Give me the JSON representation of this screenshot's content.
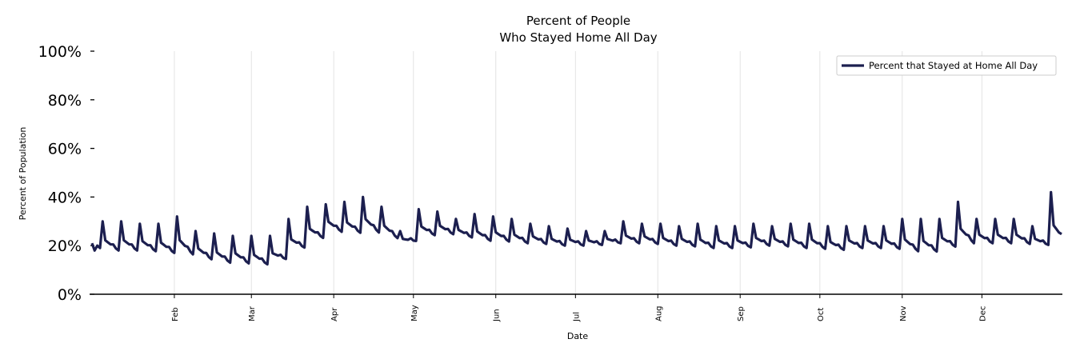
{
  "chart_data": {
    "type": "line",
    "title": [
      "Percent of People",
      "Who Stayed Home All Day"
    ],
    "xlabel": "Date",
    "ylabel": "Percent of Population",
    "ylim": [
      0,
      100
    ],
    "yticks": [
      "0%",
      "20%",
      "40%",
      "60%",
      "80%",
      "100%"
    ],
    "ytick_values": [
      0,
      20,
      40,
      60,
      80,
      100
    ],
    "xticks": [
      {
        "label": "Feb",
        "day": 31
      },
      {
        "label": "Mar",
        "day": 60
      },
      {
        "label": "Apr",
        "day": 91
      },
      {
        "label": "May",
        "day": 121
      },
      {
        "label": "Jun",
        "day": 152
      },
      {
        "label": "Jul",
        "day": 182
      },
      {
        "label": "Aug",
        "day": 213
      },
      {
        "label": "Sep",
        "day": 244
      },
      {
        "label": "Oct",
        "day": 274
      },
      {
        "label": "Nov",
        "day": 305
      },
      {
        "label": "Dec",
        "day": 335
      }
    ],
    "x_days": 366,
    "grid": "vertical",
    "legend": {
      "position": "top-right",
      "entries": [
        "Percent that Stayed at Home All Day"
      ]
    },
    "series": [
      {
        "name": "Percent that Stayed at Home All Day",
        "color": "#1c1f4f",
        "first_days": [
          21,
          18,
          20,
          19
        ],
        "weekly_peaks": [
          30,
          30,
          29,
          29,
          32,
          26,
          25,
          24,
          24,
          24,
          31,
          36,
          37,
          38,
          40,
          36,
          26,
          35,
          34,
          31,
          33,
          32,
          31,
          29,
          28,
          27,
          26,
          26,
          30,
          29,
          29,
          28,
          29,
          28,
          28,
          29,
          28,
          29,
          29,
          28,
          28,
          28,
          28,
          31,
          31,
          31,
          38,
          31,
          31,
          31,
          28,
          42
        ],
        "weekly_lows": [
          18,
          18,
          18,
          17,
          17,
          15,
          13,
          13,
          12,
          13,
          18,
          22,
          26,
          25,
          26,
          24,
          21,
          24,
          25,
          24,
          22,
          22,
          21,
          21,
          20,
          20,
          20,
          21,
          21,
          21,
          20,
          20,
          19,
          19,
          19,
          20,
          20,
          19,
          19,
          18,
          19,
          19,
          19,
          18,
          17,
          19,
          21,
          21,
          21,
          21,
          20,
          21
        ]
      }
    ]
  }
}
